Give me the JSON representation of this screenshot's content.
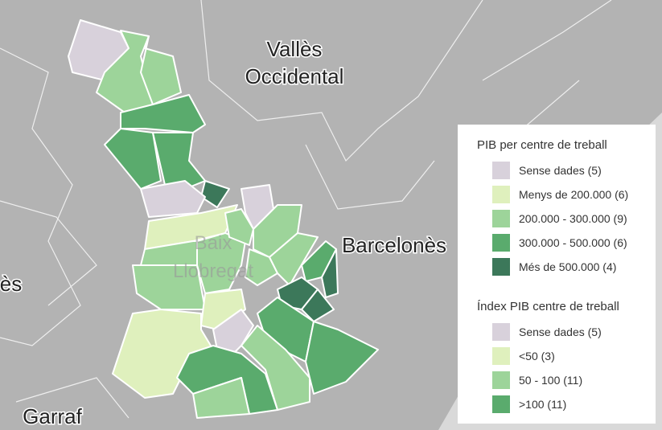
{
  "map_labels": {
    "valles_1": "Vallès",
    "valles_2": "Occidental",
    "barcelones": "Barcelonès",
    "baix_1": "Baix",
    "baix_2": "Llobregat",
    "left_edge": "lès",
    "garraf": "Garraf"
  },
  "legend": [
    {
      "title": "PIB per centre de treball",
      "items": [
        {
          "label": "Sense dades (5)",
          "color": "#d8d1db"
        },
        {
          "label": "Menys de 200.000 (6)",
          "color": "#dff0bd"
        },
        {
          "label": "200.000 - 300.000 (9)",
          "color": "#9dd49a"
        },
        {
          "label": "300.000 - 500.000 (6)",
          "color": "#5aab6d"
        },
        {
          "label": "Més de 500.000 (4)",
          "color": "#3c785a"
        }
      ]
    },
    {
      "title": "Índex PIB centre de treball",
      "items": [
        {
          "label": "Sense dades (5)",
          "color": "#d8d1db"
        },
        {
          "label": "<50 (3)",
          "color": "#dff0bd"
        },
        {
          "label": "50 - 100 (11)",
          "color": "#9dd49a"
        },
        {
          "label": ">100 (11)",
          "color": "#5aab6d"
        }
      ]
    }
  ]
}
